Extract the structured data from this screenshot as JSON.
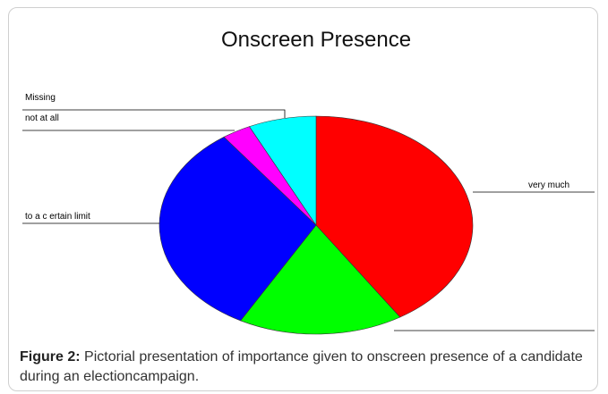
{
  "chart_data": {
    "type": "pie",
    "title": "Onscreen Presence",
    "categories": [
      "very much",
      null,
      "to a c ertain limit",
      "not at all",
      "Missing"
    ],
    "values": [
      41,
      17,
      32,
      3,
      7
    ],
    "colors": [
      "#ff0000",
      "#00ff00",
      "#0000ff",
      "#ff00ff",
      "#00ffff"
    ]
  },
  "caption": {
    "label": "Figure 2:",
    "text": "Pictorial presentation of importance given to onscreen presence of a candidate during an electioncampaign."
  }
}
